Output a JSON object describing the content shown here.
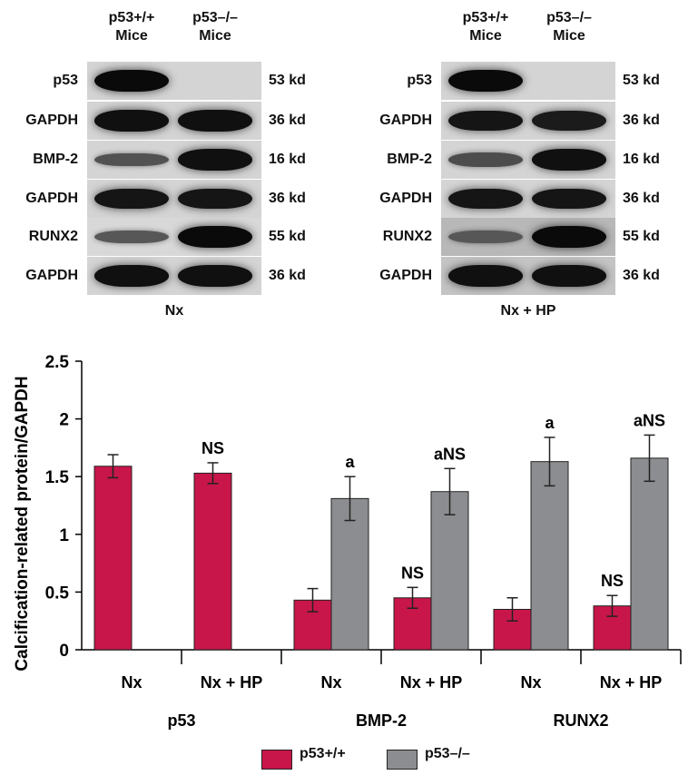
{
  "blots": [
    {
      "header_left": "p53+/+\nMice",
      "header_right": "p53–/–\nMice",
      "condition": "Nx",
      "rows": [
        {
          "label": "p53",
          "kd": "53 kd",
          "left_intensity": 1.0,
          "right_intensity": 0.0
        },
        {
          "label": "GAPDH",
          "kd": "36 kd",
          "left_intensity": 0.95,
          "right_intensity": 0.95
        },
        {
          "label": "BMP-2",
          "kd": "16 kd",
          "left_intensity": 0.35,
          "right_intensity": 0.95
        },
        {
          "label": "GAPDH",
          "kd": "36 kd",
          "left_intensity": 0.9,
          "right_intensity": 0.9
        },
        {
          "label": "RUNX2",
          "kd": "55 kd",
          "left_intensity": 0.3,
          "right_intensity": 1.0
        },
        {
          "label": "GAPDH",
          "kd": "36 kd",
          "left_intensity": 0.95,
          "right_intensity": 0.95
        }
      ]
    },
    {
      "header_left": "p53+/+\nMice",
      "header_right": "p53–/–\nMice",
      "condition": "Nx + HP",
      "rows": [
        {
          "label": "p53",
          "kd": "53 kd",
          "left_intensity": 1.0,
          "right_intensity": 0.0
        },
        {
          "label": "GAPDH",
          "kd": "36 kd",
          "left_intensity": 0.9,
          "right_intensity": 0.85
        },
        {
          "label": "BMP-2",
          "kd": "16 kd",
          "left_intensity": 0.4,
          "right_intensity": 0.95
        },
        {
          "label": "GAPDH",
          "kd": "36 kd",
          "left_intensity": 0.9,
          "right_intensity": 0.9
        },
        {
          "label": "RUNX2",
          "kd": "55 kd",
          "left_intensity": 0.3,
          "right_intensity": 1.0
        },
        {
          "label": "GAPDH",
          "kd": "36 kd",
          "left_intensity": 0.95,
          "right_intensity": 0.95
        }
      ]
    }
  ],
  "chart_data": {
    "type": "bar",
    "ylabel": "Calcification-related protein/GAPDH",
    "ylim": [
      0,
      2.5
    ],
    "yticks": [
      "0",
      "0.5",
      "1",
      "1.5",
      "2",
      "2.5"
    ],
    "categories": [
      "Nx",
      "Nx + HP",
      "Nx",
      "Nx + HP",
      "Nx",
      "Nx + HP"
    ],
    "groups": [
      "p53",
      "BMP-2",
      "RUNX2"
    ],
    "series": [
      {
        "name": "p53+/+",
        "color": "#c8164a",
        "values": [
          1.59,
          1.53,
          0.43,
          0.45,
          0.35,
          0.38
        ],
        "errors": [
          0.1,
          0.09,
          0.1,
          0.09,
          0.1,
          0.09
        ],
        "annotations": [
          "",
          "NS",
          "",
          "NS",
          "",
          "NS"
        ]
      },
      {
        "name": "p53–/–",
        "color": "#8c8d90",
        "values": [
          null,
          null,
          1.31,
          1.37,
          1.63,
          1.66
        ],
        "errors": [
          null,
          null,
          0.19,
          0.2,
          0.21,
          0.2
        ],
        "annotations": [
          "",
          "",
          "a",
          "aNS",
          "a",
          "aNS"
        ]
      }
    ],
    "legend": [
      "p53+/+",
      "p53–/–"
    ],
    "legend_position": "bottom"
  }
}
